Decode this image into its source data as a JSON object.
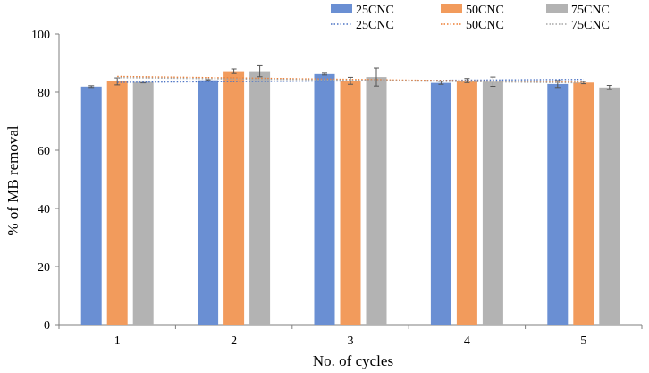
{
  "chart_data": {
    "type": "bar",
    "title": "",
    "xlabel": "No. of cycles",
    "ylabel": "% of MB removal",
    "categories": [
      "1",
      "2",
      "3",
      "4",
      "5"
    ],
    "ylim": [
      0,
      100
    ],
    "yticks": [
      0,
      20,
      40,
      60,
      80,
      100
    ],
    "grid": false,
    "legend_position": "top",
    "series": [
      {
        "name": "25CNC",
        "color": "#6a8fd3",
        "values": [
          81.9,
          84.1,
          86.2,
          83.2,
          82.8
        ],
        "errors": [
          0.3,
          0.2,
          0.3,
          0.5,
          1.2
        ]
      },
      {
        "name": "50CNC",
        "color": "#f29b5c",
        "values": [
          83.7,
          87.2,
          83.9,
          84.0,
          83.3
        ],
        "errors": [
          1.2,
          0.8,
          1.2,
          0.7,
          0.4
        ]
      },
      {
        "name": "75CNC",
        "color": "#b3b3b3",
        "values": [
          83.5,
          87.2,
          85.2,
          83.6,
          81.6
        ],
        "errors": [
          0.3,
          1.9,
          3.1,
          1.6,
          0.7
        ]
      }
    ],
    "trendlines": [
      {
        "name": "25CNC",
        "color": "#4a72c4",
        "start": 83.4,
        "end": 84.4
      },
      {
        "name": "50CNC",
        "color": "#ed7d31",
        "start": 85.4,
        "end": 83.4
      },
      {
        "name": "75CNC",
        "color": "#a5a5a5",
        "start": 85.0,
        "end": 83.2
      }
    ]
  }
}
